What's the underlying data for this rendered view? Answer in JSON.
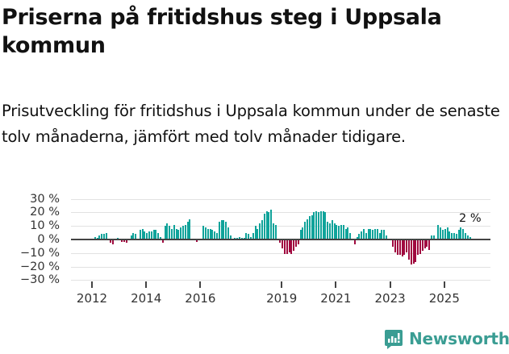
{
  "header": {
    "title": "Priserna på fritidshus steg i Uppsala kommun",
    "subtitle": "Prisutveckling för fritidshus i Uppsala kommun under de senaste tolv månaderna, jämfört med tolv månader tidigare."
  },
  "colors": {
    "positive": "#0fa39a",
    "negative": "#a0093f",
    "brand": "#3a9d93"
  },
  "brand": {
    "name": "Newsworthy"
  },
  "chart_data": {
    "type": "bar",
    "title": "Priserna på fritidshus steg i Uppsala kommun",
    "xlabel": "",
    "ylabel": "",
    "ylim": [
      -30,
      30
    ],
    "yticks": [
      "30 %",
      "20 %",
      "10 %",
      "0 %",
      "−10 %",
      "−20 %",
      "−30 %"
    ],
    "ytick_values": [
      30,
      20,
      10,
      0,
      -10,
      -20,
      -30
    ],
    "xticks": [
      "2012",
      "2014",
      "2016",
      "2019",
      "2021",
      "2023",
      "2025"
    ],
    "xtick_values": [
      2012,
      2014,
      2016,
      2019,
      2021,
      2023,
      2025
    ],
    "grid": true,
    "legend": "none",
    "annotation": {
      "text": "2 %",
      "x": 2025.9,
      "y": 2
    },
    "start": 2012.08,
    "step_months": 1,
    "values": [
      2,
      1,
      3,
      4,
      4,
      5,
      0,
      -2,
      -3,
      0,
      1,
      0,
      -1,
      -1,
      -2,
      0,
      3,
      5,
      4,
      0,
      7,
      8,
      6,
      5,
      6,
      6,
      7,
      7,
      5,
      2,
      -2,
      10,
      12,
      10,
      8,
      11,
      8,
      7,
      9,
      10,
      11,
      13,
      15,
      0,
      0,
      -1,
      0,
      0,
      10,
      9,
      8,
      8,
      7,
      6,
      5,
      13,
      14,
      14,
      13,
      9,
      3,
      0,
      1,
      1,
      2,
      1,
      1,
      5,
      4,
      2,
      5,
      10,
      8,
      12,
      14,
      19,
      21,
      20,
      22,
      12,
      11,
      0,
      -2,
      -6,
      -10,
      -10,
      -9,
      -10,
      -8,
      -5,
      -3,
      7,
      9,
      13,
      15,
      17,
      18,
      20,
      21,
      20,
      21,
      21,
      20,
      13,
      12,
      14,
      12,
      11,
      10,
      11,
      11,
      8,
      9,
      5,
      0,
      -3,
      2,
      4,
      6,
      8,
      5,
      8,
      8,
      7,
      8,
      8,
      5,
      7,
      7,
      3,
      0,
      0,
      -5,
      -9,
      -11,
      -11,
      -12,
      -11,
      -9,
      -14,
      -18,
      -17,
      -16,
      -11,
      -10,
      -8,
      -6,
      -5,
      -7,
      3,
      3,
      0,
      11,
      9,
      7,
      8,
      9,
      6,
      5,
      5,
      4,
      7,
      9,
      8,
      5,
      3,
      2
    ]
  }
}
